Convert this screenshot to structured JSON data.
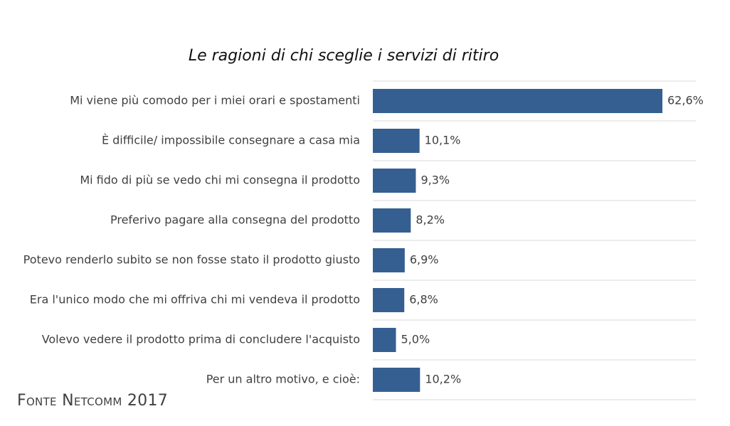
{
  "chart_data": {
    "type": "bar",
    "orientation": "horizontal",
    "title": "Le ragioni di chi sceglie i servizi di ritiro",
    "categories": [
      "Mi viene più comodo per i miei orari e spostamenti",
      "È difficile/ impossibile consegnare a casa mia",
      "Mi fido di più se vedo chi mi consegna il prodotto",
      "Preferivo pagare alla consegna del prodotto",
      "Potevo renderlo subito se non fosse stato il prodotto giusto",
      "Era l'unico modo che mi offriva chi mi vendeva il prodotto",
      "Volevo vedere il prodotto prima di concludere l'acquisto",
      "Per un altro motivo, e cioè:"
    ],
    "values": [
      62.6,
      10.1,
      9.3,
      8.2,
      6.9,
      6.8,
      5.0,
      10.2
    ],
    "value_labels": [
      "62,6%",
      "10,1%",
      "9,3%",
      "8,2%",
      "6,9%",
      "6,8%",
      "5,0%",
      "10,2%"
    ],
    "unit": "%",
    "xlim": [
      0,
      70
    ],
    "grid": true,
    "colors": {
      "bar": "#355F91",
      "grid": "#D9D9D9"
    }
  },
  "source": "Fonte Netcomm 2017"
}
